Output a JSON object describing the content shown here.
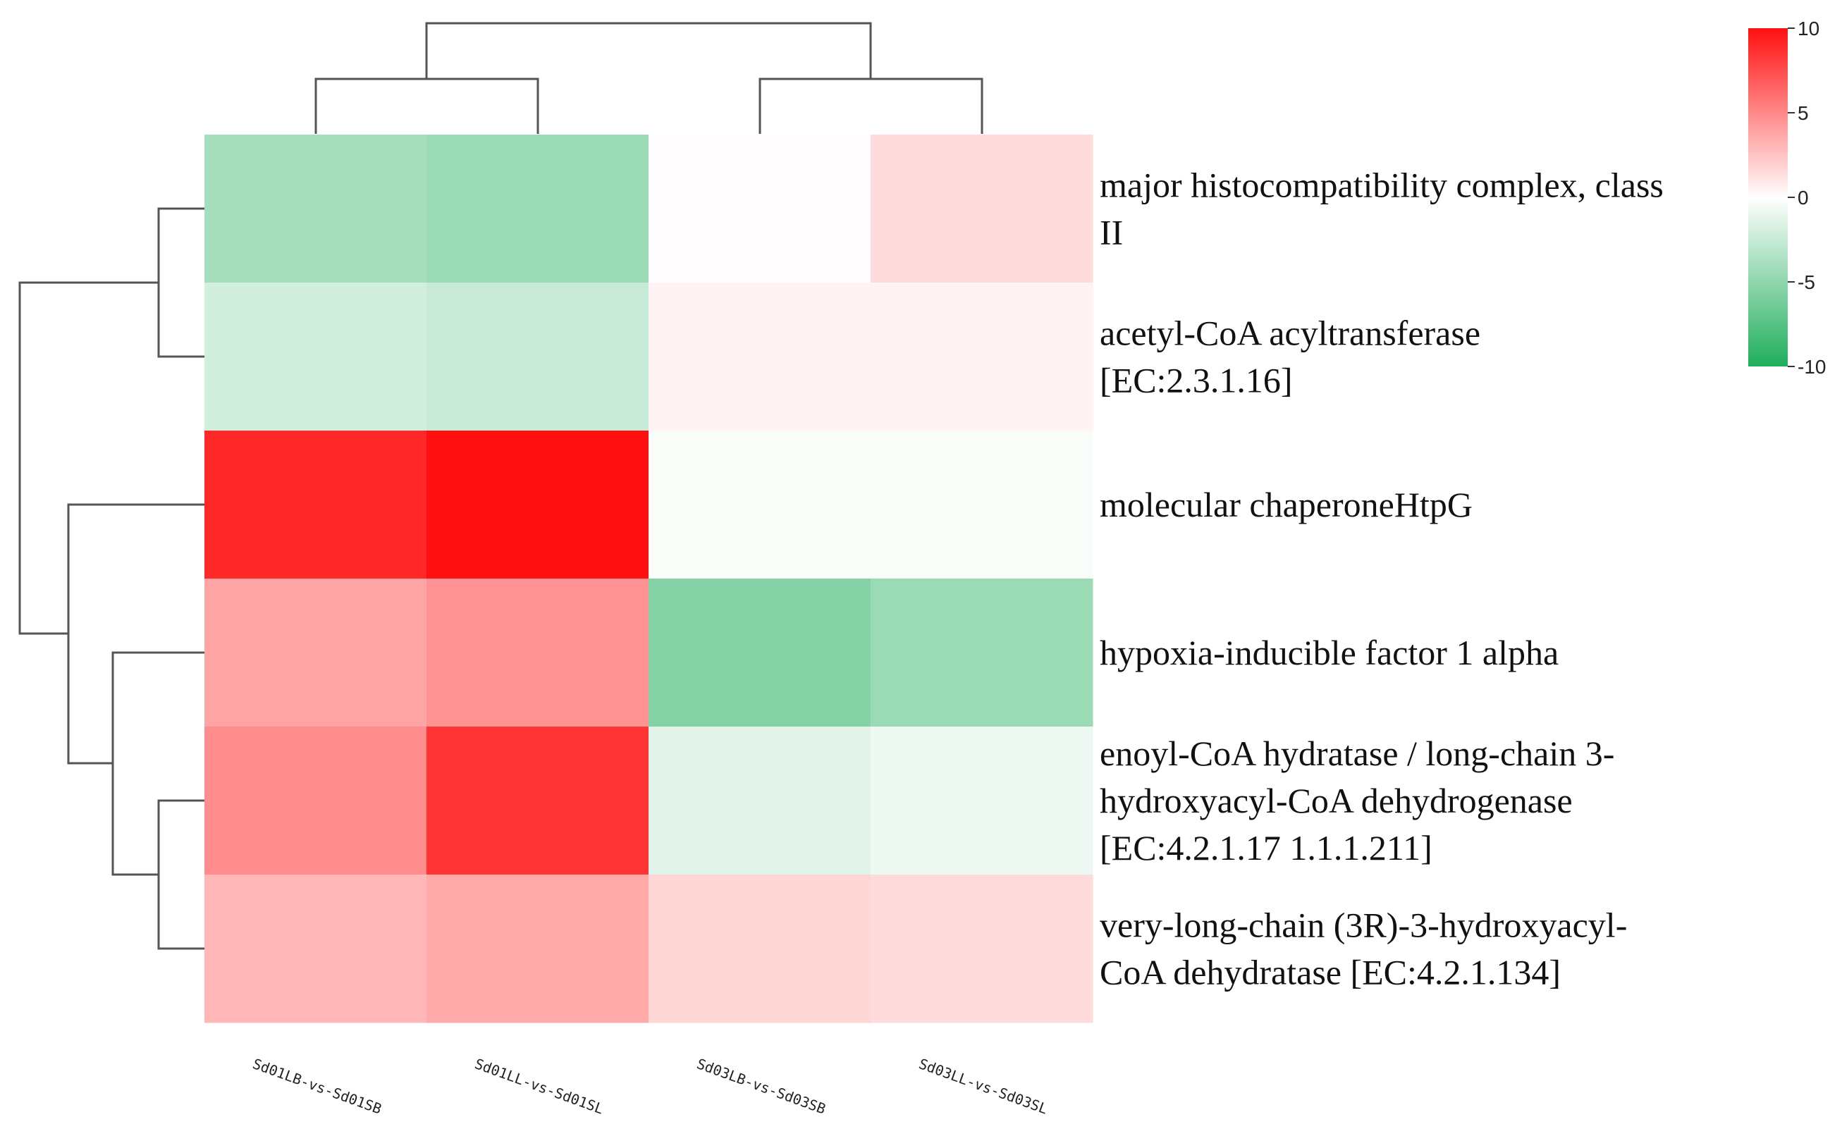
{
  "chart_data": {
    "type": "heatmap",
    "title": "",
    "columns": [
      "Sd01LB-vs-Sd01SB",
      "Sd01LL-vs-Sd01SL",
      "Sd03LB-vs-Sd03SB",
      "Sd03LL-vs-Sd03SL"
    ],
    "rows": [
      {
        "lines": [
          "major histocompatibility complex, class",
          "II"
        ],
        "values": [
          -4.0,
          -4.5,
          0.1,
          1.5
        ]
      },
      {
        "lines": [
          "acetyl-CoA acyltransferase",
          "[EC:2.3.1.16]"
        ],
        "values": [
          -2.0,
          -2.5,
          0.5,
          0.5
        ]
      },
      {
        "lines": [
          "molecular chaperoneHtpG"
        ],
        "values": [
          9.0,
          10.0,
          -0.3,
          -0.3
        ]
      },
      {
        "lines": [
          "hypoxia-inducible factor 1 alpha"
        ],
        "values": [
          3.8,
          4.5,
          -5.5,
          -4.5
        ]
      },
      {
        "lines": [
          "enoyl-CoA hydratase / long-chain 3-",
          "hydroxyacyl-CoA dehydrogenase",
          "[EC:4.2.1.17 1.1.1.211]"
        ],
        "values": [
          4.8,
          8.5,
          -1.3,
          -0.8
        ]
      },
      {
        "lines": [
          "very-long-chain (3R)-3-hydroxyacyl-",
          "CoA dehydratase [EC:4.2.1.134]"
        ],
        "values": [
          3.0,
          3.6,
          1.7,
          1.5
        ]
      }
    ],
    "color_scale": {
      "min": -10,
      "max": 10,
      "low_color": "#1fae5b",
      "mid_color": "#ffffff",
      "high_color": "#ff1010",
      "ticks": [
        10,
        5,
        0,
        -5,
        -10
      ]
    },
    "legend": "top-right"
  }
}
